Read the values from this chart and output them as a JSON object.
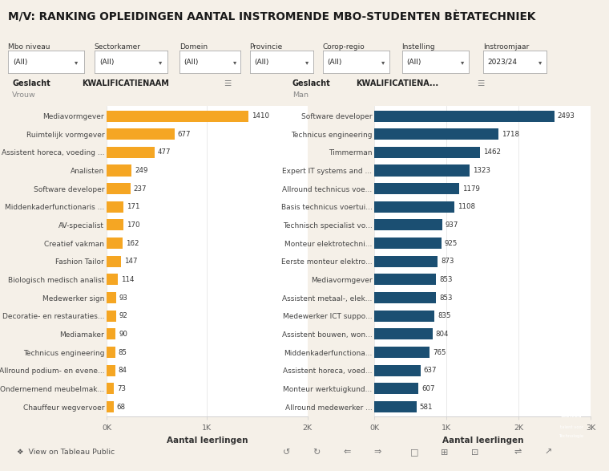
{
  "title": "M/V: RANKING OPLEIDINGEN AANTAL INSTROMENDE MBO-STUDENTEN BÈTATECHNIEK",
  "background_color": "#f5f0e8",
  "filters": [
    {
      "label": "Mbo niveau",
      "value": "(All)"
    },
    {
      "label": "Sectorkamer",
      "value": "(All)"
    },
    {
      "label": "Domein",
      "value": "(All)"
    },
    {
      "label": "Provincie",
      "value": "(All)"
    },
    {
      "label": "Corop-regio",
      "value": "(All)"
    },
    {
      "label": "Instelling",
      "value": "(All)"
    },
    {
      "label": "Instroomjaar",
      "value": "2023/24"
    }
  ],
  "left_chart": {
    "geslacht_label": "Geslacht",
    "kwal_label": "KWALIFICATIENAAM",
    "geslacht_value": "Vrouw",
    "xlabel": "Aantal leerlingen",
    "bar_color": "#f5a623",
    "xlim": [
      0,
      2000
    ],
    "xticks": [
      0,
      1000,
      2000
    ],
    "xticklabels": [
      "0K",
      "1K",
      "2K"
    ],
    "categories": [
      "Mediavormgever",
      "Ruimtelijk vormgever",
      "Assistent horeca, voeding ...",
      "Analisten",
      "Software developer",
      "Middenkaderfunctionaris ...",
      "AV-specialist",
      "Creatief vakman",
      "Fashion Tailor",
      "Biologisch medisch analist",
      "Medewerker sign",
      "Decoratie- en restauraties...",
      "Mediamaker",
      "Technicus engineering",
      "Allround podium- en evene...",
      "Ondernemend meubelmak...",
      "Chauffeur wegvervoer"
    ],
    "values": [
      1410,
      677,
      477,
      249,
      237,
      171,
      170,
      162,
      147,
      114,
      93,
      92,
      90,
      85,
      84,
      73,
      68
    ]
  },
  "right_chart": {
    "geslacht_label": "Geslacht",
    "kwal_label": "KWALIFICATIENA...",
    "geslacht_value": "Man",
    "xlabel": "Aantal leerlingen",
    "bar_color": "#1b4f72",
    "xlim": [
      0,
      3000
    ],
    "xticks": [
      0,
      1000,
      2000,
      3000
    ],
    "xticklabels": [
      "0K",
      "1K",
      "2K",
      "3K"
    ],
    "categories": [
      "Software developer",
      "Technicus engineering",
      "Timmerman",
      "Expert IT systems and ...",
      "Allround technicus voe...",
      "Basis technicus voertui...",
      "Technisch specialist vo...",
      "Monteur elektrotechni...",
      "Eerste monteur elektro...",
      "Mediavormgever",
      "Assistent metaal-, elek...",
      "Medewerker ICT suppo...",
      "Assistent bouwen, won...",
      "Middenkaderfunctiona...",
      "Assistent horeca, voed...",
      "Monteur werktuigkund...",
      "Allround medewerker ..."
    ],
    "values": [
      2493,
      1718,
      1462,
      1323,
      1179,
      1108,
      937,
      925,
      873,
      853,
      853,
      835,
      804,
      765,
      637,
      607,
      581
    ]
  }
}
